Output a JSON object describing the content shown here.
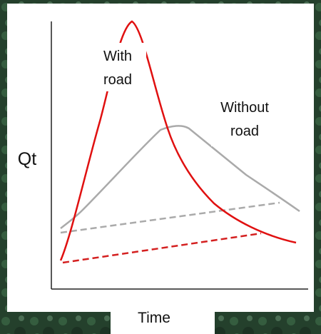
{
  "diagram": {
    "y_axis_label": "Qt",
    "x_axis_label": "Time",
    "curve_labels": [
      {
        "lines": [
          "With",
          "road"
        ]
      },
      {
        "lines": [
          "Without",
          "road"
        ]
      }
    ]
  }
}
